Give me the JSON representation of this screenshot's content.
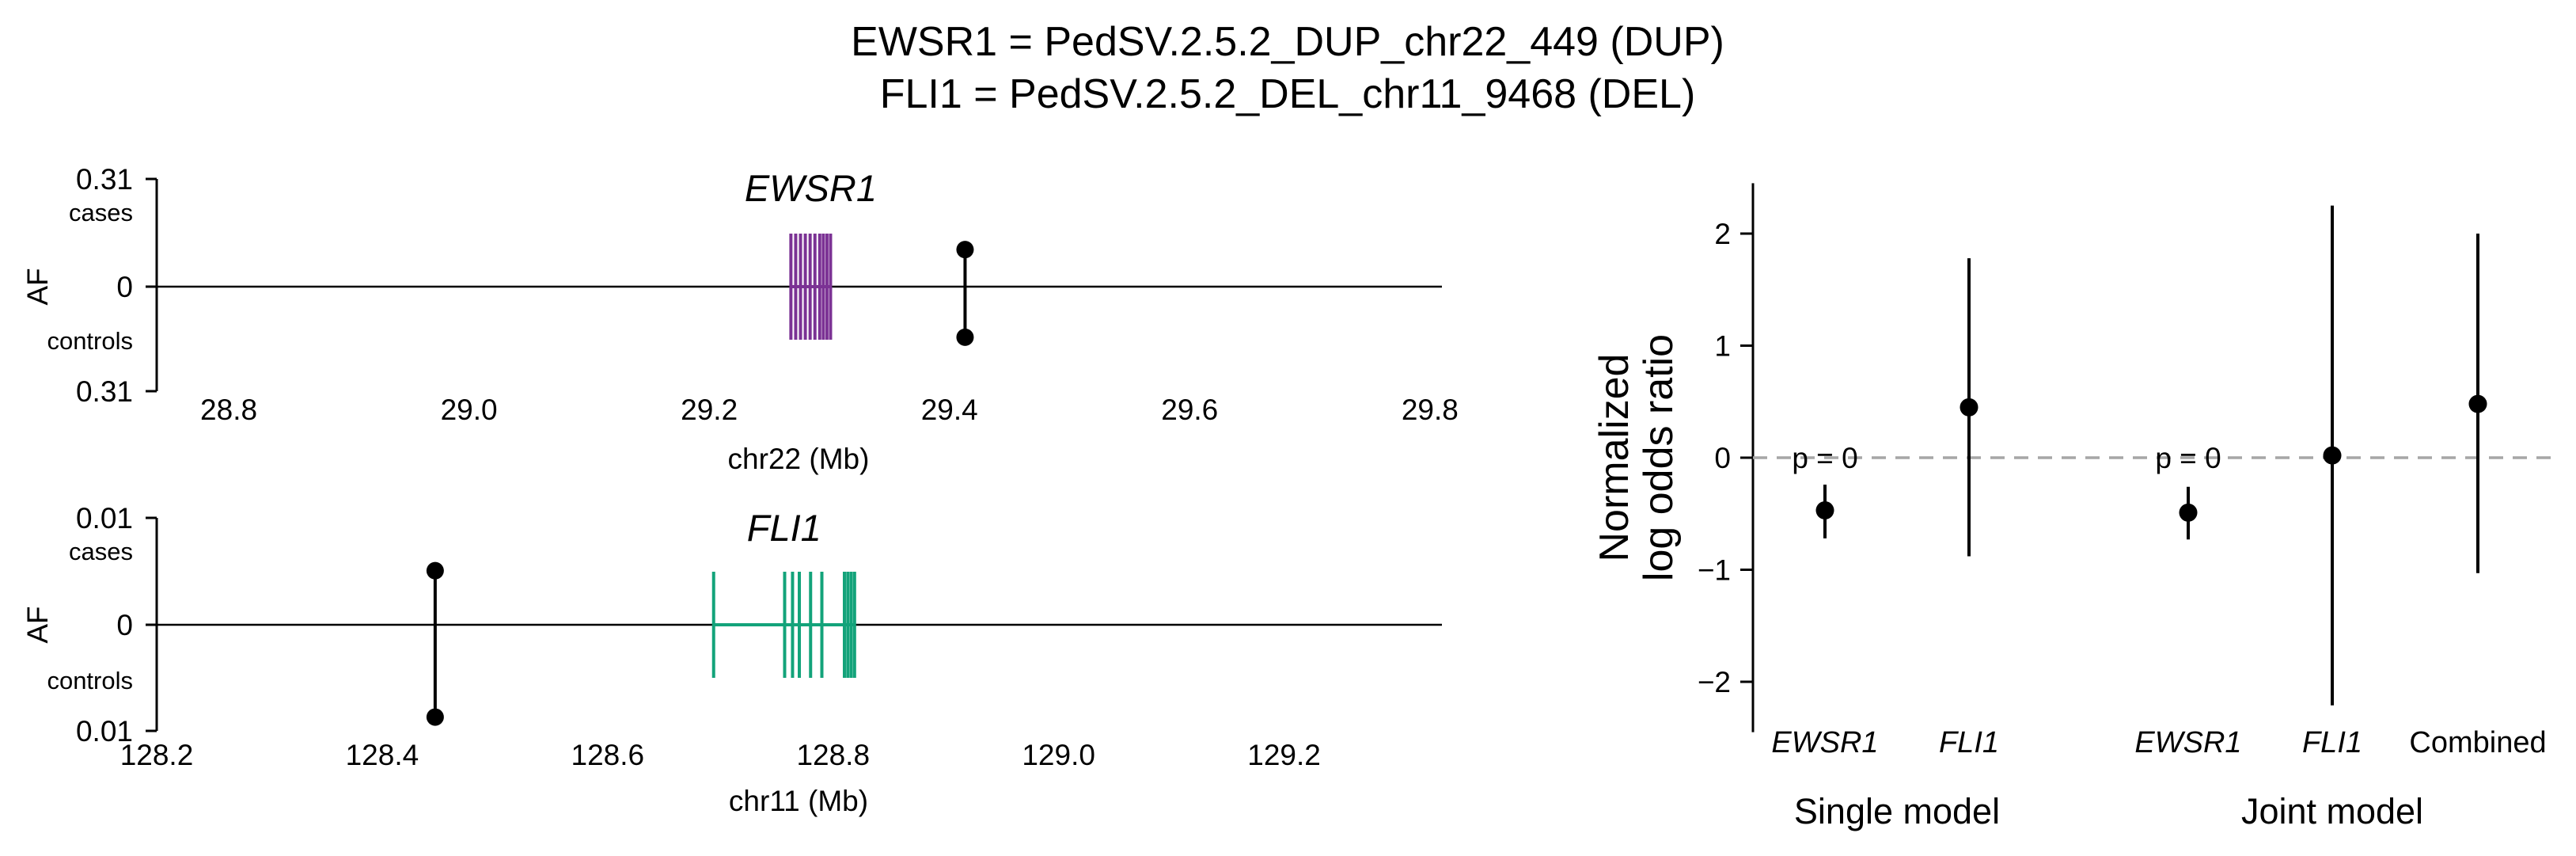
{
  "title": {
    "line1": "EWSR1 = PedSV.2.5.2_DUP_chr22_449 (DUP)",
    "line2": "FLI1 = PedSV.2.5.2_DEL_chr11_9468 (DEL)"
  },
  "chart_data": [
    {
      "type": "scatter",
      "panel": "EWSR1 locus",
      "gene_label": "EWSR1",
      "xlabel": "chr22 (Mb)",
      "ylabel": "AF",
      "xlim": [
        28.74,
        29.81
      ],
      "xticks": [
        "28.8",
        "29.0",
        "29.2",
        "29.4",
        "29.6",
        "29.8"
      ],
      "yticks": {
        "top": "0.31",
        "zero": "0",
        "bottom": "0.31"
      },
      "ylim": [
        -0.31,
        0.31
      ],
      "cases_label": "cases",
      "controls_label": "controls",
      "gene_color": "#7b3294",
      "gene_span_mb": [
        29.268,
        29.301
      ],
      "exons_mb": [
        29.268,
        29.272,
        29.276,
        29.28,
        29.284,
        29.288,
        29.292,
        29.295,
        29.298,
        29.301
      ],
      "variant": {
        "pos_mb": 29.413,
        "af_cases": 0.11,
        "af_controls": 0.15
      }
    },
    {
      "type": "scatter",
      "panel": "FLI1 locus",
      "gene_label": "FLI1",
      "xlabel": "chr11 (Mb)",
      "ylabel": "AF",
      "xlim": [
        128.2,
        129.34
      ],
      "xticks": [
        "128.2",
        "128.4",
        "128.6",
        "128.8",
        "129.0",
        "129.2"
      ],
      "yticks": {
        "top": "0.01",
        "zero": "0",
        "bottom": "0.01"
      },
      "ylim": [
        -0.01,
        0.01
      ],
      "cases_label": "cases",
      "controls_label": "controls",
      "gene_color": "#13a37a",
      "gene_span_mb": [
        128.694,
        128.819
      ],
      "exons_mb": [
        128.694,
        128.757,
        128.764,
        128.77,
        128.78,
        128.79,
        128.81,
        128.813,
        128.816,
        128.819
      ],
      "variant": {
        "pos_mb": 128.447,
        "af_cases": 0.0051,
        "af_controls": 0.0087
      }
    },
    {
      "type": "scatter",
      "panel": "Effect sizes",
      "ylabel_lines": [
        "Normalized",
        "log odds ratio"
      ],
      "ylim": [
        -2.45,
        2.45
      ],
      "yticks": [
        -2,
        -1,
        0,
        1,
        2
      ],
      "reference_line": 0,
      "groups": [
        "Single model",
        "Joint model"
      ],
      "points": [
        {
          "label": "EWSR1",
          "italic": true,
          "group": "Single model",
          "estimate": -0.47,
          "lower": -0.72,
          "upper": -0.24,
          "annotation": "p = 0"
        },
        {
          "label": "FLI1",
          "italic": true,
          "group": "Single model",
          "estimate": 0.45,
          "lower": -0.88,
          "upper": 1.78
        },
        {
          "label": "EWSR1",
          "italic": true,
          "group": "Joint model",
          "estimate": -0.49,
          "lower": -0.73,
          "upper": -0.26,
          "annotation": "p = 0"
        },
        {
          "label": "FLI1",
          "italic": true,
          "group": "Joint model",
          "estimate": 0.02,
          "lower": -2.21,
          "upper": 2.25
        },
        {
          "label": "Combined",
          "italic": false,
          "group": "Joint model",
          "estimate": 0.48,
          "lower": -1.03,
          "upper": 2.0
        }
      ]
    }
  ]
}
